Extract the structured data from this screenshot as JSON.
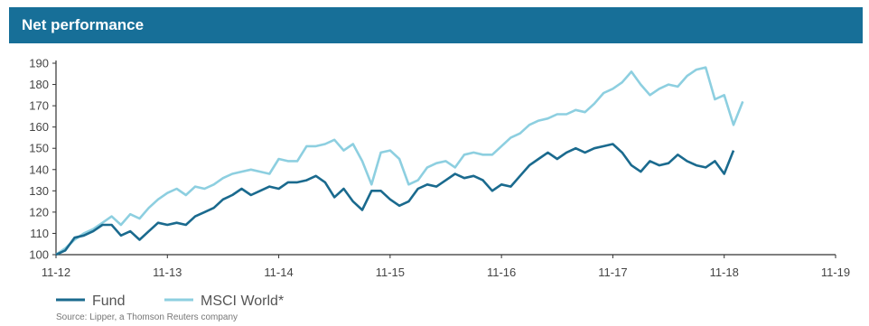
{
  "header": {
    "title": "Net performance"
  },
  "source": "Source: Lipper, a Thomson Reuters company",
  "colors": {
    "header_bg": "#176f98",
    "fund": "#1a6a8e",
    "msci": "#8dcfe0",
    "axis": "#333333"
  },
  "chart_data": {
    "type": "line",
    "title": "",
    "xlabel": "",
    "ylabel": "",
    "ylim": [
      100,
      190
    ],
    "yticks": [
      "100",
      "110",
      "120",
      "130",
      "140",
      "150",
      "160",
      "170",
      "180",
      "190"
    ],
    "xticks": [
      "11-12",
      "11-13",
      "11-14",
      "11-15",
      "11-16",
      "11-17",
      "11-18",
      "11-19"
    ],
    "xrange_months": [
      0,
      84
    ],
    "grid": false,
    "legend": "bottom-left",
    "series": [
      {
        "name": "Fund",
        "color": "#1a6a8e",
        "points": [
          [
            0,
            100
          ],
          [
            1,
            102
          ],
          [
            2,
            108
          ],
          [
            3,
            109
          ],
          [
            4,
            111
          ],
          [
            5,
            114
          ],
          [
            6,
            114
          ],
          [
            7,
            109
          ],
          [
            8,
            111
          ],
          [
            9,
            107
          ],
          [
            10,
            111
          ],
          [
            11,
            115
          ],
          [
            12,
            114
          ],
          [
            13,
            115
          ],
          [
            14,
            114
          ],
          [
            15,
            118
          ],
          [
            16,
            120
          ],
          [
            17,
            122
          ],
          [
            18,
            126
          ],
          [
            19,
            128
          ],
          [
            20,
            131
          ],
          [
            21,
            128
          ],
          [
            22,
            130
          ],
          [
            23,
            132
          ],
          [
            24,
            131
          ],
          [
            25,
            134
          ],
          [
            26,
            134
          ],
          [
            27,
            135
          ],
          [
            28,
            137
          ],
          [
            29,
            134
          ],
          [
            30,
            127
          ],
          [
            31,
            131
          ],
          [
            32,
            125
          ],
          [
            33,
            121
          ],
          [
            34,
            130
          ],
          [
            35,
            130
          ],
          [
            36,
            126
          ],
          [
            37,
            123
          ],
          [
            38,
            125
          ],
          [
            39,
            131
          ],
          [
            40,
            133
          ],
          [
            41,
            132
          ],
          [
            42,
            135
          ],
          [
            43,
            138
          ],
          [
            44,
            136
          ],
          [
            45,
            137
          ],
          [
            46,
            135
          ],
          [
            47,
            130
          ],
          [
            48,
            133
          ],
          [
            49,
            132
          ],
          [
            50,
            137
          ],
          [
            51,
            142
          ],
          [
            52,
            145
          ],
          [
            53,
            148
          ],
          [
            54,
            145
          ],
          [
            55,
            148
          ],
          [
            56,
            150
          ],
          [
            57,
            148
          ],
          [
            58,
            150
          ],
          [
            59,
            151
          ],
          [
            60,
            152
          ],
          [
            61,
            148
          ],
          [
            62,
            142
          ],
          [
            63,
            139
          ],
          [
            64,
            144
          ],
          [
            65,
            142
          ],
          [
            66,
            143
          ],
          [
            67,
            147
          ],
          [
            68,
            144
          ],
          [
            69,
            142
          ],
          [
            70,
            141
          ],
          [
            71,
            144
          ],
          [
            72,
            138
          ],
          [
            73,
            149
          ]
        ]
      },
      {
        "name": "MSCI World*",
        "color": "#8dcfe0",
        "points": [
          [
            0,
            100
          ],
          [
            1,
            103
          ],
          [
            2,
            107
          ],
          [
            3,
            110
          ],
          [
            4,
            112
          ],
          [
            5,
            115
          ],
          [
            6,
            118
          ],
          [
            7,
            114
          ],
          [
            8,
            119
          ],
          [
            9,
            117
          ],
          [
            10,
            122
          ],
          [
            11,
            126
          ],
          [
            12,
            129
          ],
          [
            13,
            131
          ],
          [
            14,
            128
          ],
          [
            15,
            132
          ],
          [
            16,
            131
          ],
          [
            17,
            133
          ],
          [
            18,
            136
          ],
          [
            19,
            138
          ],
          [
            20,
            139
          ],
          [
            21,
            140
          ],
          [
            22,
            139
          ],
          [
            23,
            138
          ],
          [
            24,
            145
          ],
          [
            25,
            144
          ],
          [
            26,
            144
          ],
          [
            27,
            151
          ],
          [
            28,
            151
          ],
          [
            29,
            152
          ],
          [
            30,
            154
          ],
          [
            31,
            149
          ],
          [
            32,
            152
          ],
          [
            33,
            144
          ],
          [
            34,
            133
          ],
          [
            35,
            148
          ],
          [
            36,
            149
          ],
          [
            37,
            145
          ],
          [
            38,
            133
          ],
          [
            39,
            135
          ],
          [
            40,
            141
          ],
          [
            41,
            143
          ],
          [
            42,
            144
          ],
          [
            43,
            141
          ],
          [
            44,
            147
          ],
          [
            45,
            148
          ],
          [
            46,
            147
          ],
          [
            47,
            147
          ],
          [
            48,
            151
          ],
          [
            49,
            155
          ],
          [
            50,
            157
          ],
          [
            51,
            161
          ],
          [
            52,
            163
          ],
          [
            53,
            164
          ],
          [
            54,
            166
          ],
          [
            55,
            166
          ],
          [
            56,
            168
          ],
          [
            57,
            167
          ],
          [
            58,
            171
          ],
          [
            59,
            176
          ],
          [
            60,
            178
          ],
          [
            61,
            181
          ],
          [
            62,
            186
          ],
          [
            63,
            180
          ],
          [
            64,
            175
          ],
          [
            65,
            178
          ],
          [
            66,
            180
          ],
          [
            67,
            179
          ],
          [
            68,
            184
          ],
          [
            69,
            187
          ],
          [
            70,
            188
          ],
          [
            71,
            173
          ],
          [
            72,
            175
          ],
          [
            73,
            161
          ],
          [
            74,
            172
          ]
        ]
      }
    ]
  }
}
